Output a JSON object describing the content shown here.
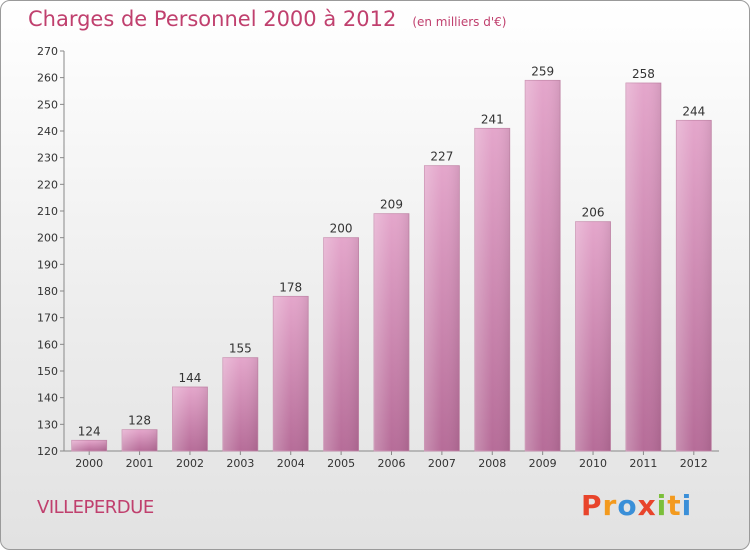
{
  "header": {
    "title": "Charges de Personnel 2000 à 2012",
    "subtitle": "(en milliers d'€)"
  },
  "footer": {
    "commune": "VILLEPERDUE",
    "logo_letters": [
      "P",
      "r",
      "o",
      "x",
      "i",
      "t",
      "i"
    ],
    "logo_colors": [
      "#e8442b",
      "#f39a1e",
      "#3a8fd8",
      "#e8442b",
      "#7bbf3a",
      "#f39a1e",
      "#3a8fd8"
    ]
  },
  "chart_data": {
    "type": "bar",
    "title": "Charges de Personnel 2000 à 2012",
    "subtitle": "(en milliers d'€)",
    "categories": [
      "2000",
      "2001",
      "2002",
      "2003",
      "2004",
      "2005",
      "2006",
      "2007",
      "2008",
      "2009",
      "2010",
      "2011",
      "2012"
    ],
    "values": [
      124,
      128,
      144,
      155,
      178,
      200,
      209,
      227,
      241,
      259,
      206,
      258,
      244
    ],
    "ylim": [
      120,
      270
    ],
    "ytick_step": 10,
    "grid": false,
    "bar_color": "#d88db5"
  }
}
